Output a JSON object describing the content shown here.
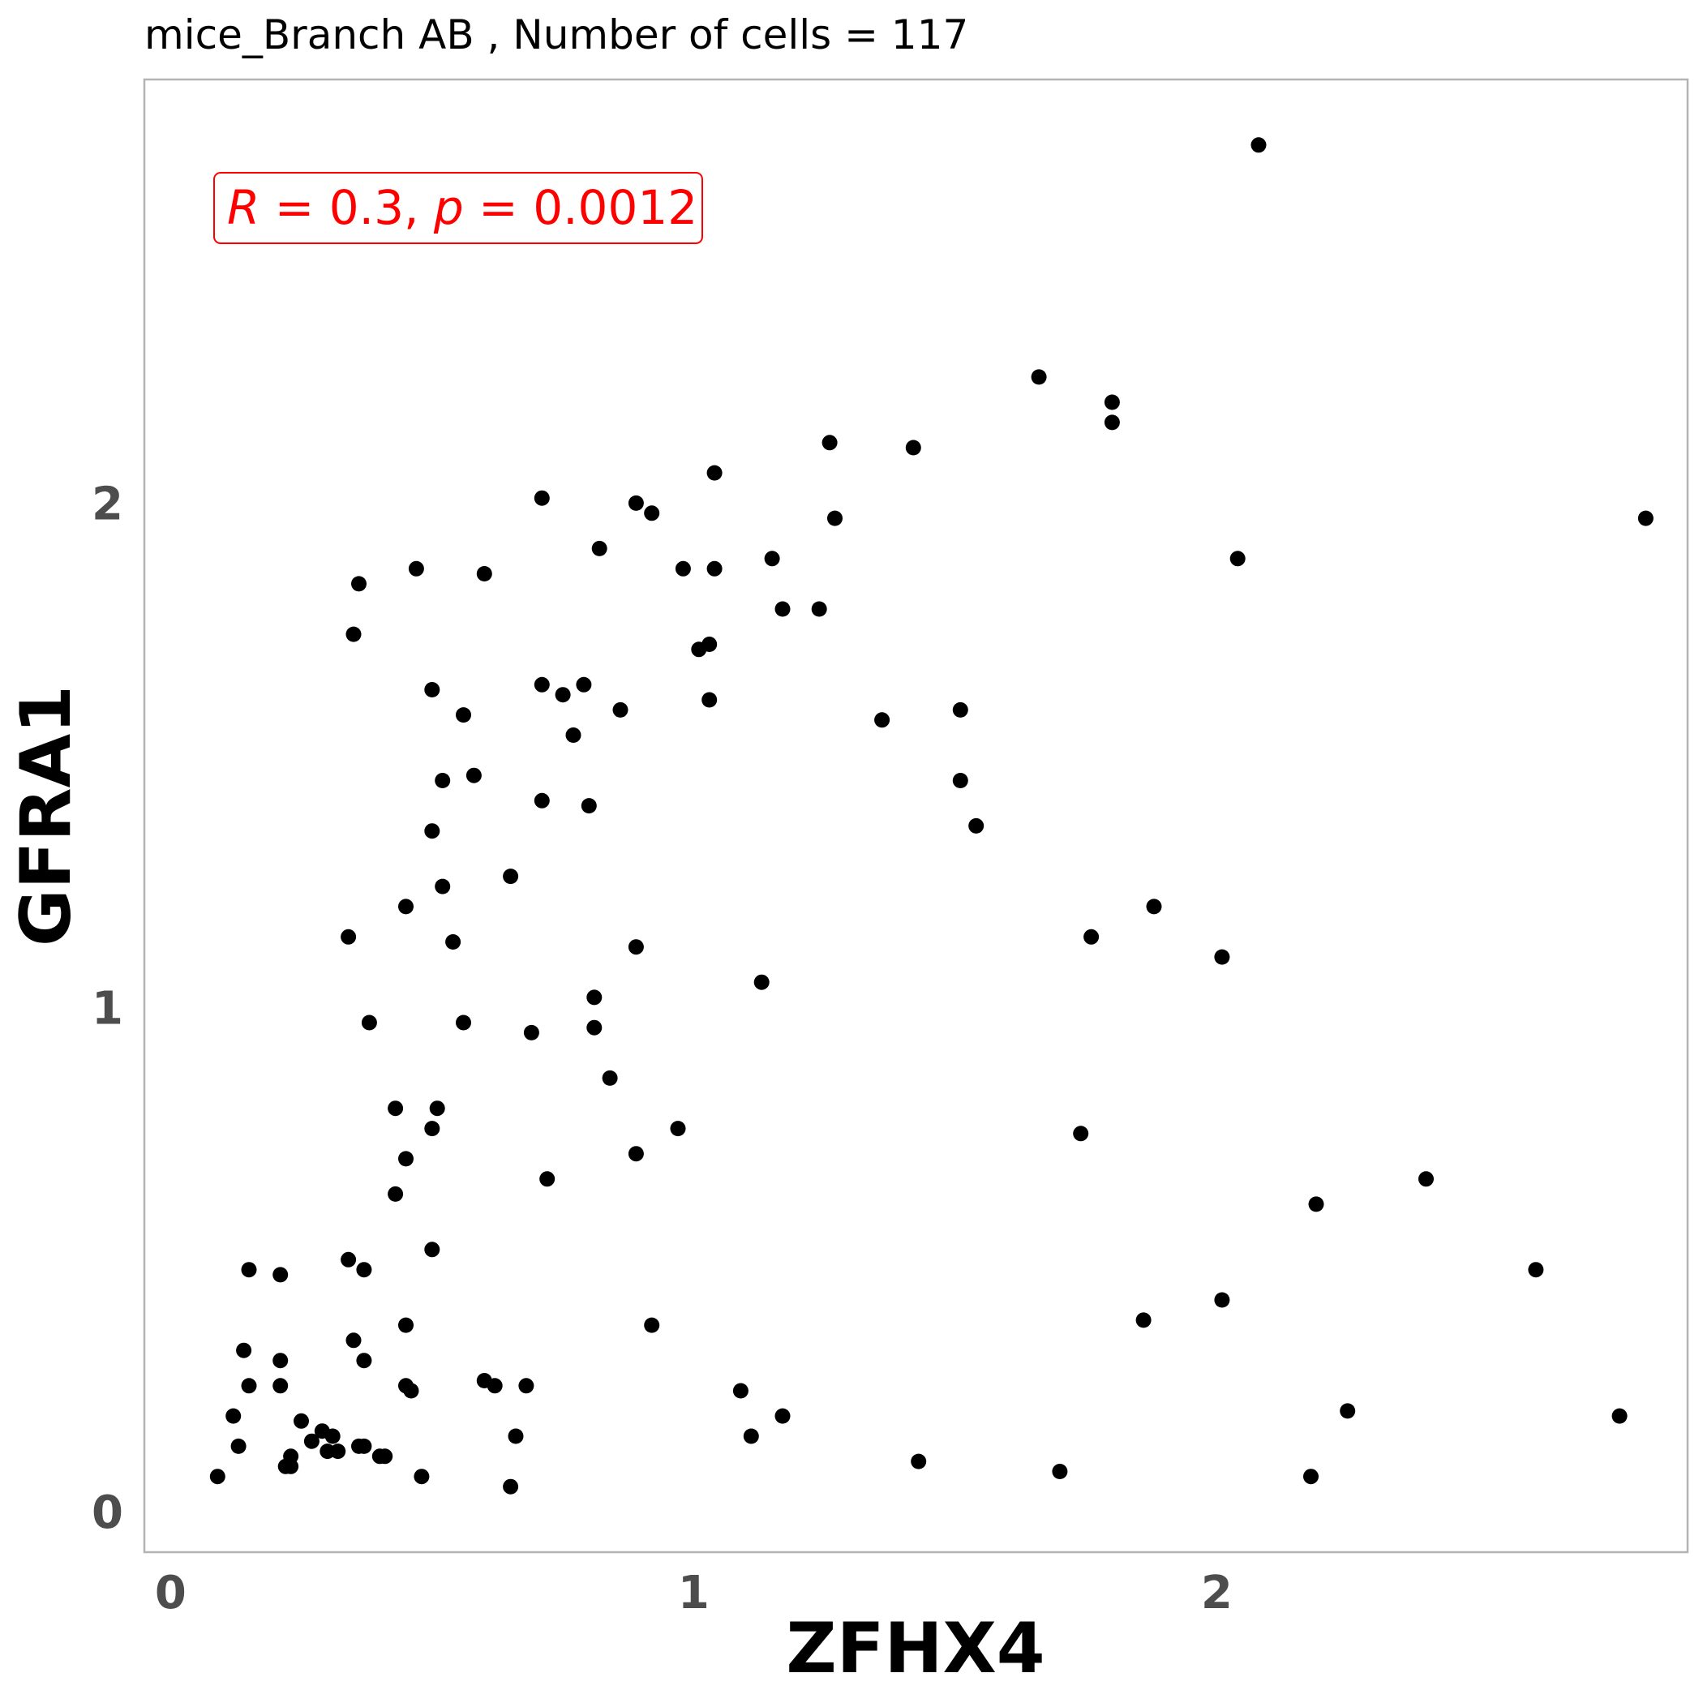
{
  "chart_data": {
    "type": "scatter",
    "title": "mice_Branch AB , Number of cells =  117",
    "xlabel": "ZFHX4",
    "ylabel": "GFRA1",
    "xlim": [
      -0.05,
      2.9
    ],
    "ylim": [
      -0.08,
      2.84
    ],
    "xticks": [
      "0",
      "1",
      "2"
    ],
    "yticks": [
      "0",
      "1",
      "2"
    ],
    "grid": false,
    "annotation": {
      "R_symbol": "R",
      "R_text": " = 0.3, ",
      "p_symbol": "p",
      "p_text": " = 0.0012"
    },
    "colors": {
      "point": "#000000",
      "annotation": "#ff0000",
      "panel_border": "#b3b3b3",
      "tick_text": "#4d4d4d"
    },
    "points": [
      [
        2.08,
        2.71
      ],
      [
        1.66,
        2.25
      ],
      [
        1.8,
        2.2
      ],
      [
        1.8,
        2.16
      ],
      [
        1.26,
        2.12
      ],
      [
        1.42,
        2.11
      ],
      [
        1.04,
        2.06
      ],
      [
        0.71,
        2.01
      ],
      [
        0.89,
        2.0
      ],
      [
        0.92,
        1.98
      ],
      [
        1.27,
        1.97
      ],
      [
        2.82,
        1.97
      ],
      [
        0.82,
        1.91
      ],
      [
        2.04,
        1.89
      ],
      [
        1.15,
        1.89
      ],
      [
        0.47,
        1.87
      ],
      [
        0.98,
        1.87
      ],
      [
        1.04,
        1.87
      ],
      [
        0.6,
        1.86
      ],
      [
        0.36,
        1.84
      ],
      [
        1.17,
        1.79
      ],
      [
        1.24,
        1.79
      ],
      [
        0.35,
        1.74
      ],
      [
        1.03,
        1.72
      ],
      [
        1.01,
        1.71
      ],
      [
        0.5,
        1.63
      ],
      [
        0.71,
        1.64
      ],
      [
        0.79,
        1.64
      ],
      [
        0.75,
        1.62
      ],
      [
        1.03,
        1.61
      ],
      [
        0.86,
        1.59
      ],
      [
        1.51,
        1.59
      ],
      [
        0.56,
        1.58
      ],
      [
        1.36,
        1.57
      ],
      [
        0.77,
        1.54
      ],
      [
        0.58,
        1.46
      ],
      [
        0.52,
        1.45
      ],
      [
        1.51,
        1.45
      ],
      [
        0.71,
        1.41
      ],
      [
        0.8,
        1.4
      ],
      [
        1.54,
        1.36
      ],
      [
        0.5,
        1.35
      ],
      [
        0.65,
        1.26
      ],
      [
        0.52,
        1.24
      ],
      [
        0.45,
        1.2
      ],
      [
        1.88,
        1.2
      ],
      [
        0.34,
        1.14
      ],
      [
        0.54,
        1.13
      ],
      [
        1.76,
        1.14
      ],
      [
        0.89,
        1.12
      ],
      [
        2.01,
        1.1
      ],
      [
        1.13,
        1.05
      ],
      [
        0.81,
        1.02
      ],
      [
        0.38,
        0.97
      ],
      [
        0.56,
        0.97
      ],
      [
        0.69,
        0.95
      ],
      [
        0.81,
        0.96
      ],
      [
        0.84,
        0.86
      ],
      [
        0.43,
        0.8
      ],
      [
        0.51,
        0.8
      ],
      [
        0.5,
        0.76
      ],
      [
        0.97,
        0.76
      ],
      [
        1.74,
        0.75
      ],
      [
        0.89,
        0.71
      ],
      [
        0.45,
        0.7
      ],
      [
        0.72,
        0.66
      ],
      [
        2.4,
        0.66
      ],
      [
        0.43,
        0.63
      ],
      [
        2.19,
        0.61
      ],
      [
        0.5,
        0.52
      ],
      [
        0.34,
        0.5
      ],
      [
        0.37,
        0.48
      ],
      [
        0.15,
        0.48
      ],
      [
        0.21,
        0.47
      ],
      [
        2.61,
        0.48
      ],
      [
        2.01,
        0.42
      ],
      [
        1.86,
        0.38
      ],
      [
        0.45,
        0.37
      ],
      [
        0.92,
        0.37
      ],
      [
        0.35,
        0.34
      ],
      [
        0.14,
        0.32
      ],
      [
        0.21,
        0.3
      ],
      [
        0.37,
        0.3
      ],
      [
        0.6,
        0.26
      ],
      [
        0.15,
        0.25
      ],
      [
        0.21,
        0.25
      ],
      [
        0.45,
        0.25
      ],
      [
        0.62,
        0.25
      ],
      [
        0.68,
        0.25
      ],
      [
        0.46,
        0.24
      ],
      [
        1.09,
        0.24
      ],
      [
        0.12,
        0.19
      ],
      [
        0.25,
        0.18
      ],
      [
        1.17,
        0.19
      ],
      [
        2.25,
        0.2
      ],
      [
        2.77,
        0.19
      ],
      [
        0.29,
        0.16
      ],
      [
        0.31,
        0.15
      ],
      [
        0.27,
        0.14
      ],
      [
        0.66,
        0.15
      ],
      [
        1.11,
        0.15
      ],
      [
        0.13,
        0.13
      ],
      [
        0.36,
        0.13
      ],
      [
        0.37,
        0.13
      ],
      [
        0.3,
        0.12
      ],
      [
        0.32,
        0.12
      ],
      [
        0.23,
        0.11
      ],
      [
        0.4,
        0.11
      ],
      [
        0.41,
        0.11
      ],
      [
        0.23,
        0.09
      ],
      [
        0.22,
        0.09
      ],
      [
        1.43,
        0.1
      ],
      [
        0.09,
        0.07
      ],
      [
        0.48,
        0.07
      ],
      [
        1.7,
        0.08
      ],
      [
        2.18,
        0.07
      ],
      [
        0.65,
        0.05
      ]
    ]
  }
}
